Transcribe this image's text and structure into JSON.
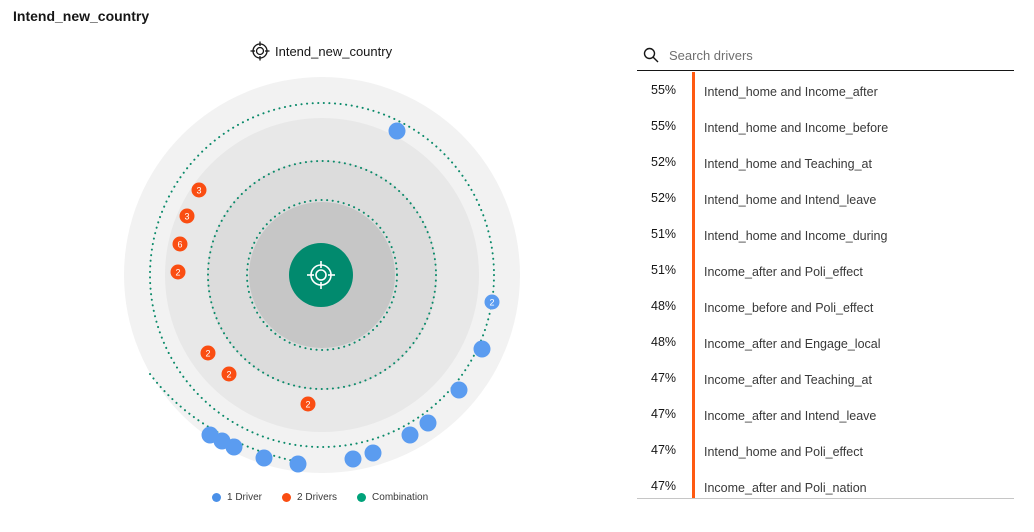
{
  "page": {
    "title": "Intend_new_country"
  },
  "visualization": {
    "center_label": "Intend_new_country",
    "icon": "target-icon",
    "colors": {
      "one_driver": "#5b9cf0",
      "two_drivers": "#fa4d12",
      "combination": "#00a27a",
      "center": "#018a6e",
      "ring_dots": "#0b8a6a"
    },
    "rings": [
      {
        "name": "outer",
        "nodes": [
          {
            "type": "two",
            "label": "3"
          },
          {
            "type": "two",
            "label": "3"
          },
          {
            "type": "two",
            "label": "6"
          },
          {
            "type": "two",
            "label": "2"
          },
          {
            "type": "one",
            "label": ""
          },
          {
            "type": "one",
            "label": "2"
          },
          {
            "type": "one",
            "label": ""
          },
          {
            "type": "one",
            "label": ""
          },
          {
            "type": "one",
            "label": ""
          },
          {
            "type": "one",
            "label": ""
          },
          {
            "type": "one",
            "label": ""
          },
          {
            "type": "one",
            "label": ""
          },
          {
            "type": "one",
            "label": ""
          },
          {
            "type": "one",
            "label": ""
          },
          {
            "type": "one",
            "label": ""
          },
          {
            "type": "one",
            "label": ""
          },
          {
            "type": "one",
            "label": ""
          }
        ]
      },
      {
        "name": "middle",
        "nodes": [
          {
            "type": "two",
            "label": "2"
          },
          {
            "type": "two",
            "label": "2"
          },
          {
            "type": "two",
            "label": "2"
          }
        ]
      }
    ]
  },
  "legend": [
    {
      "label": "1 Driver",
      "color": "#4a90e8"
    },
    {
      "label": "2 Drivers",
      "color": "#fa4d12"
    },
    {
      "label": "Combination",
      "color": "#00a27a"
    }
  ],
  "search": {
    "placeholder": "Search drivers",
    "icon": "search-icon"
  },
  "drivers": [
    {
      "pct": "55%",
      "name": "Intend_home and Income_after"
    },
    {
      "pct": "55%",
      "name": "Intend_home and Income_before"
    },
    {
      "pct": "52%",
      "name": "Intend_home and Teaching_at"
    },
    {
      "pct": "52%",
      "name": "Intend_home and Intend_leave"
    },
    {
      "pct": "51%",
      "name": "Intend_home and Income_during"
    },
    {
      "pct": "51%",
      "name": "Income_after and Poli_effect"
    },
    {
      "pct": "48%",
      "name": "Income_before and Poli_effect"
    },
    {
      "pct": "48%",
      "name": "Income_after and Engage_local"
    },
    {
      "pct": "47%",
      "name": "Income_after and Teaching_at"
    },
    {
      "pct": "47%",
      "name": "Income_after and Intend_leave"
    },
    {
      "pct": "47%",
      "name": "Intend_home and Poli_effect"
    },
    {
      "pct": "47%",
      "name": "Income_after and Poli_nation"
    }
  ]
}
